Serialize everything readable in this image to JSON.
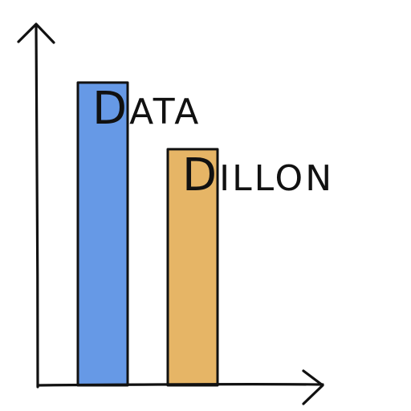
{
  "chart_data": {
    "type": "bar",
    "categories": [
      "DATA",
      "DILLON"
    ],
    "values": [
      100,
      78
    ],
    "colors": [
      "#6699e6",
      "#e6b566"
    ],
    "title": "",
    "xlabel": "",
    "ylabel": "",
    "ylim": [
      0,
      118
    ],
    "axis_ticks": false,
    "grid": false,
    "legend": "none",
    "style": "hand-drawn"
  }
}
